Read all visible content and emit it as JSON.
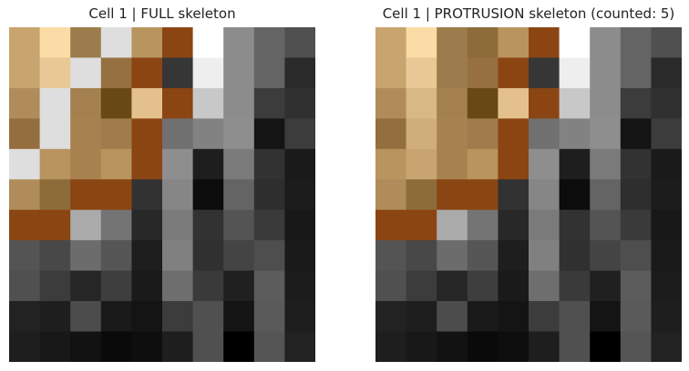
{
  "chart_data": [
    {
      "type": "heatmap",
      "title": "Cell 1 | FULL skeleton",
      "grid": false,
      "rows": 11,
      "cols": 10,
      "cells": [
        [
          "#c8a46e",
          "#fcdca6",
          "#9c7c4c",
          "#dedede",
          "#b8945e",
          "#8b4513",
          "#ffffff",
          "#8c8c8c",
          "#646464",
          "#505050"
        ],
        [
          "#c8a46e",
          "#eac896",
          "#dedede",
          "#967040",
          "#8b4513",
          "#363636",
          "#eeeeee",
          "#8c8c8c",
          "#646464",
          "#2a2a2a"
        ],
        [
          "#b08c5a",
          "#dedede",
          "#a4804e",
          "#684814",
          "#e4c08c",
          "#8b4513",
          "#c8c8c8",
          "#8c8c8c",
          "#3c3c3c",
          "#303030"
        ],
        [
          "#946e3e",
          "#dedede",
          "#a8824e",
          "#a07c4c",
          "#8b4513",
          "#707070",
          "#828282",
          "#8e8e8e",
          "#141414",
          "#3c3c3c"
        ],
        [
          "#dedede",
          "#b8945e",
          "#a8824e",
          "#b8945e",
          "#8b4513",
          "#8e8e8e",
          "#1e1e1e",
          "#7a7a7a",
          "#323232",
          "#1a1a1a"
        ],
        [
          "#b08c5a",
          "#8e6c3a",
          "#8b4513",
          "#8b4513",
          "#323232",
          "#868686",
          "#0c0c0c",
          "#646464",
          "#2e2e2e",
          "#1c1c1c"
        ],
        [
          "#8b4513",
          "#8b4513",
          "#aaaaaa",
          "#747474",
          "#282828",
          "#7a7a7a",
          "#323232",
          "#545454",
          "#3a3a3a",
          "#181818"
        ],
        [
          "#545454",
          "#484848",
          "#6c6c6c",
          "#565656",
          "#1e1e1e",
          "#808080",
          "#303030",
          "#444444",
          "#4e4e4e",
          "#1a1a1a"
        ],
        [
          "#505050",
          "#3c3c3c",
          "#262626",
          "#3e3e3e",
          "#1a1a1a",
          "#6e6e6e",
          "#3a3a3a",
          "#202020",
          "#5c5c5c",
          "#1c1c1c"
        ],
        [
          "#222222",
          "#1e1e1e",
          "#4c4c4c",
          "#1a1a1a",
          "#141414",
          "#3c3c3c",
          "#505050",
          "#141414",
          "#5a5a5a",
          "#1e1e1e"
        ],
        [
          "#1e1e1e",
          "#181818",
          "#121212",
          "#0a0a0a",
          "#0e0e0e",
          "#1e1e1e",
          "#505050",
          "#000000",
          "#555555",
          "#222222"
        ]
      ]
    },
    {
      "type": "heatmap",
      "title": "Cell 1 | PROTRUSION skeleton (counted: 5)",
      "grid": false,
      "rows": 11,
      "cols": 10,
      "cells": [
        [
          "#c8a46e",
          "#fcdca6",
          "#9c7c4c",
          "#8e6c3a",
          "#b8945e",
          "#8b4513",
          "#ffffff",
          "#8c8c8c",
          "#646464",
          "#505050"
        ],
        [
          "#c8a46e",
          "#eac896",
          "#9c7c4c",
          "#967040",
          "#8b4513",
          "#363636",
          "#eeeeee",
          "#8c8c8c",
          "#646464",
          "#2a2a2a"
        ],
        [
          "#b08c5a",
          "#d8b884",
          "#a4804e",
          "#684814",
          "#e4c08c",
          "#8b4513",
          "#c8c8c8",
          "#8c8c8c",
          "#3c3c3c",
          "#303030"
        ],
        [
          "#946e3e",
          "#d0ae7a",
          "#a8824e",
          "#a07c4c",
          "#8b4513",
          "#707070",
          "#828282",
          "#8e8e8e",
          "#141414",
          "#3c3c3c"
        ],
        [
          "#b8945e",
          "#c8a470",
          "#a8824e",
          "#b8945e",
          "#8b4513",
          "#8e8e8e",
          "#1e1e1e",
          "#7a7a7a",
          "#323232",
          "#1a1a1a"
        ],
        [
          "#b08c5a",
          "#8e6c3a",
          "#8b4513",
          "#8b4513",
          "#323232",
          "#868686",
          "#0c0c0c",
          "#646464",
          "#2e2e2e",
          "#1c1c1c"
        ],
        [
          "#8b4513",
          "#8b4513",
          "#aaaaaa",
          "#747474",
          "#282828",
          "#7a7a7a",
          "#323232",
          "#545454",
          "#3a3a3a",
          "#181818"
        ],
        [
          "#545454",
          "#484848",
          "#6c6c6c",
          "#565656",
          "#1e1e1e",
          "#808080",
          "#303030",
          "#444444",
          "#4e4e4e",
          "#1a1a1a"
        ],
        [
          "#505050",
          "#3c3c3c",
          "#262626",
          "#3e3e3e",
          "#1a1a1a",
          "#6e6e6e",
          "#3a3a3a",
          "#202020",
          "#5c5c5c",
          "#1c1c1c"
        ],
        [
          "#222222",
          "#1e1e1e",
          "#4c4c4c",
          "#1a1a1a",
          "#141414",
          "#3c3c3c",
          "#505050",
          "#141414",
          "#5a5a5a",
          "#1e1e1e"
        ],
        [
          "#1e1e1e",
          "#181818",
          "#121212",
          "#0a0a0a",
          "#0e0e0e",
          "#1e1e1e",
          "#505050",
          "#000000",
          "#555555",
          "#222222"
        ]
      ]
    }
  ]
}
